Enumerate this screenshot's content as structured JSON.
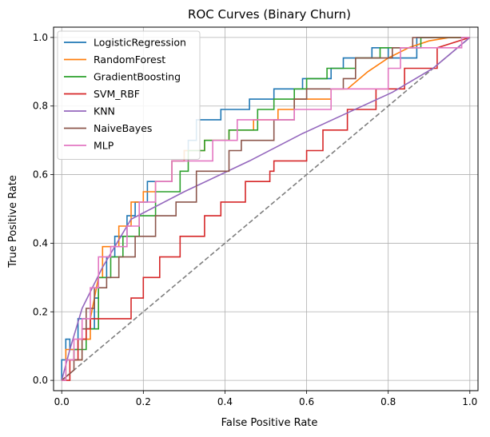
{
  "chart_data": {
    "type": "line",
    "title": "ROC Curves (Binary Churn)",
    "xlabel": "False Positive Rate",
    "ylabel": "True Positive Rate",
    "xlim": [
      -0.02,
      1.02
    ],
    "ylim": [
      -0.03,
      1.03
    ],
    "xticks": [
      0.0,
      0.2,
      0.4,
      0.6,
      0.8,
      1.0
    ],
    "yticks": [
      0.0,
      0.2,
      0.4,
      0.6,
      0.8,
      1.0
    ],
    "xtick_labels": [
      "0.0",
      "0.2",
      "0.4",
      "0.6",
      "0.8",
      "1.0"
    ],
    "ytick_labels": [
      "0.0",
      "0.2",
      "0.4",
      "0.6",
      "0.8",
      "1.0"
    ],
    "grid": true,
    "legend_position": "top-left",
    "diagonal": {
      "x": [
        0,
        1
      ],
      "y": [
        0,
        1
      ],
      "color": "#7f7f7f",
      "style": "dashed"
    },
    "series": [
      {
        "name": "LogisticRegression",
        "color": "#1f77b4",
        "x": [
          0.0,
          0.0,
          0.01,
          0.01,
          0.02,
          0.02,
          0.04,
          0.04,
          0.06,
          0.06,
          0.08,
          0.08,
          0.09,
          0.09,
          0.11,
          0.11,
          0.13,
          0.13,
          0.16,
          0.16,
          0.18,
          0.18,
          0.21,
          0.21,
          0.27,
          0.27,
          0.3,
          0.3,
          0.31,
          0.31,
          0.33,
          0.33,
          0.39,
          0.39,
          0.46,
          0.46,
          0.52,
          0.52,
          0.59,
          0.59,
          0.66,
          0.66,
          0.69,
          0.69,
          0.76,
          0.76,
          0.8,
          0.8,
          0.87,
          0.87,
          1.0
        ],
        "y": [
          0.0,
          0.06,
          0.06,
          0.12,
          0.12,
          0.09,
          0.09,
          0.18,
          0.18,
          0.15,
          0.15,
          0.24,
          0.24,
          0.3,
          0.3,
          0.36,
          0.36,
          0.42,
          0.42,
          0.48,
          0.48,
          0.52,
          0.52,
          0.58,
          0.58,
          0.64,
          0.64,
          0.67,
          0.67,
          0.7,
          0.7,
          0.76,
          0.76,
          0.79,
          0.79,
          0.82,
          0.82,
          0.85,
          0.85,
          0.88,
          0.88,
          0.91,
          0.91,
          0.94,
          0.94,
          0.97,
          0.97,
          0.94,
          0.94,
          1.0,
          1.0
        ]
      },
      {
        "name": "RandomForest",
        "color": "#ff7f0e",
        "x": [
          0.0,
          0.01,
          0.01,
          0.03,
          0.03,
          0.05,
          0.05,
          0.07,
          0.07,
          0.09,
          0.1,
          0.1,
          0.14,
          0.14,
          0.17,
          0.17,
          0.2,
          0.2,
          0.23,
          0.23,
          0.27,
          0.27,
          0.3,
          0.3,
          0.35,
          0.35,
          0.41,
          0.41,
          0.47,
          0.47,
          0.53,
          0.53,
          0.57,
          0.57,
          0.66,
          0.66,
          0.7,
          0.75,
          0.8,
          0.85,
          0.9,
          0.95,
          1.0
        ],
        "y": [
          0.0,
          0.0,
          0.09,
          0.09,
          0.06,
          0.06,
          0.12,
          0.12,
          0.18,
          0.3,
          0.3,
          0.39,
          0.39,
          0.45,
          0.45,
          0.52,
          0.52,
          0.55,
          0.55,
          0.58,
          0.58,
          0.64,
          0.64,
          0.67,
          0.67,
          0.7,
          0.7,
          0.73,
          0.73,
          0.76,
          0.76,
          0.79,
          0.79,
          0.82,
          0.82,
          0.85,
          0.85,
          0.9,
          0.94,
          0.97,
          0.99,
          1.0,
          1.0
        ]
      },
      {
        "name": "GradientBoosting",
        "color": "#2ca02c",
        "x": [
          0.0,
          0.01,
          0.01,
          0.03,
          0.03,
          0.06,
          0.06,
          0.09,
          0.09,
          0.12,
          0.12,
          0.15,
          0.15,
          0.19,
          0.19,
          0.23,
          0.23,
          0.29,
          0.29,
          0.31,
          0.31,
          0.35,
          0.35,
          0.41,
          0.41,
          0.48,
          0.48,
          0.52,
          0.52,
          0.57,
          0.57,
          0.6,
          0.6,
          0.65,
          0.65,
          0.72,
          0.72,
          0.78,
          0.78,
          0.88,
          0.88,
          1.0
        ],
        "y": [
          0.0,
          0.0,
          0.06,
          0.06,
          0.09,
          0.09,
          0.15,
          0.15,
          0.3,
          0.3,
          0.36,
          0.36,
          0.42,
          0.42,
          0.48,
          0.48,
          0.55,
          0.55,
          0.61,
          0.61,
          0.67,
          0.67,
          0.7,
          0.7,
          0.73,
          0.73,
          0.79,
          0.79,
          0.82,
          0.82,
          0.85,
          0.85,
          0.88,
          0.88,
          0.91,
          0.91,
          0.94,
          0.94,
          0.97,
          0.97,
          1.0,
          1.0
        ]
      },
      {
        "name": "SVM_RBF",
        "color": "#d62728",
        "x": [
          0.0,
          0.02,
          0.02,
          0.04,
          0.04,
          0.06,
          0.06,
          0.07,
          0.07,
          0.17,
          0.17,
          0.2,
          0.2,
          0.24,
          0.24,
          0.29,
          0.29,
          0.35,
          0.35,
          0.39,
          0.39,
          0.45,
          0.45,
          0.51,
          0.51,
          0.52,
          0.52,
          0.6,
          0.6,
          0.64,
          0.64,
          0.7,
          0.7,
          0.77,
          0.77,
          0.84,
          0.84,
          0.92,
          0.92,
          1.0
        ],
        "y": [
          0.0,
          0.0,
          0.06,
          0.06,
          0.12,
          0.12,
          0.15,
          0.15,
          0.18,
          0.18,
          0.24,
          0.24,
          0.3,
          0.3,
          0.36,
          0.36,
          0.42,
          0.42,
          0.48,
          0.48,
          0.52,
          0.52,
          0.58,
          0.58,
          0.61,
          0.61,
          0.64,
          0.64,
          0.67,
          0.67,
          0.73,
          0.73,
          0.79,
          0.79,
          0.85,
          0.85,
          0.91,
          0.91,
          0.97,
          1.0
        ]
      },
      {
        "name": "KNN",
        "color": "#9467bd",
        "x": [
          0.0,
          0.02,
          0.05,
          0.1,
          0.17,
          0.3,
          0.46,
          0.59,
          0.7,
          0.81,
          0.91,
          1.0
        ],
        "y": [
          0.0,
          0.09,
          0.21,
          0.33,
          0.47,
          0.55,
          0.64,
          0.72,
          0.78,
          0.84,
          0.91,
          1.0
        ]
      },
      {
        "name": "NaiveBayes",
        "color": "#8c564b",
        "x": [
          0.0,
          0.03,
          0.03,
          0.05,
          0.05,
          0.06,
          0.06,
          0.08,
          0.08,
          0.11,
          0.11,
          0.14,
          0.14,
          0.18,
          0.18,
          0.23,
          0.23,
          0.28,
          0.28,
          0.33,
          0.33,
          0.41,
          0.41,
          0.44,
          0.44,
          0.52,
          0.52,
          0.57,
          0.57,
          0.6,
          0.6,
          0.69,
          0.69,
          0.72,
          0.72,
          0.81,
          0.81,
          0.86,
          0.86,
          1.0
        ],
        "y": [
          0.0,
          0.03,
          0.06,
          0.06,
          0.15,
          0.15,
          0.21,
          0.21,
          0.27,
          0.27,
          0.3,
          0.3,
          0.36,
          0.36,
          0.42,
          0.42,
          0.48,
          0.48,
          0.52,
          0.52,
          0.61,
          0.61,
          0.67,
          0.67,
          0.7,
          0.7,
          0.76,
          0.76,
          0.82,
          0.82,
          0.85,
          0.85,
          0.88,
          0.88,
          0.94,
          0.94,
          0.97,
          0.97,
          1.0,
          1.0
        ]
      },
      {
        "name": "MLP",
        "color": "#e377c2",
        "x": [
          0.0,
          0.01,
          0.01,
          0.03,
          0.03,
          0.05,
          0.05,
          0.07,
          0.07,
          0.09,
          0.09,
          0.12,
          0.12,
          0.16,
          0.16,
          0.19,
          0.19,
          0.23,
          0.23,
          0.27,
          0.27,
          0.37,
          0.37,
          0.43,
          0.43,
          0.57,
          0.57,
          0.66,
          0.66,
          0.8,
          0.8,
          0.83,
          0.83,
          0.98,
          0.98,
          1.0
        ],
        "y": [
          0.0,
          0.0,
          0.06,
          0.06,
          0.12,
          0.12,
          0.18,
          0.18,
          0.27,
          0.27,
          0.36,
          0.36,
          0.39,
          0.39,
          0.45,
          0.45,
          0.52,
          0.52,
          0.58,
          0.58,
          0.64,
          0.64,
          0.7,
          0.7,
          0.76,
          0.76,
          0.79,
          0.79,
          0.85,
          0.85,
          0.91,
          0.91,
          0.97,
          0.97,
          1.0,
          1.0
        ]
      }
    ]
  }
}
